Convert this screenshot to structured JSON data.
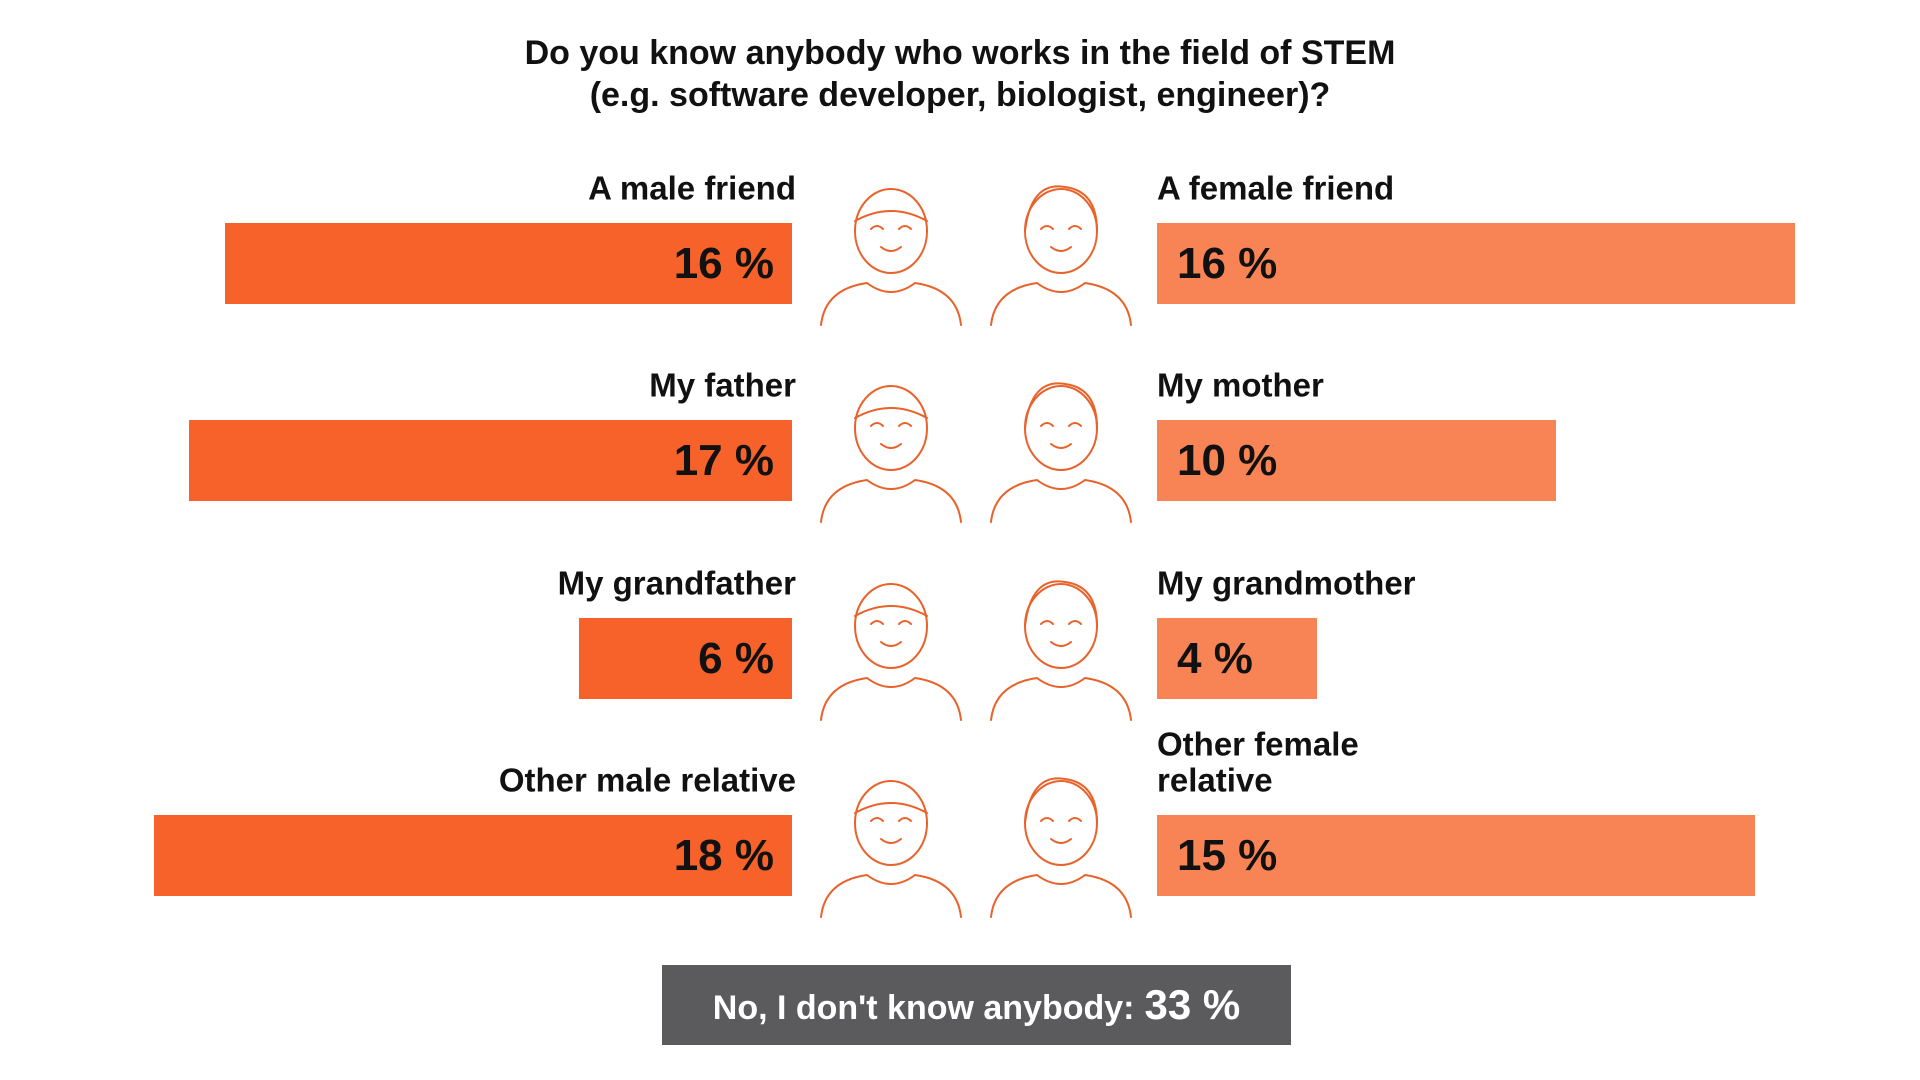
{
  "chart_data": {
    "type": "butterfly-bar",
    "title": "Do you know anybody who works in the field of STEM",
    "subtitle": "(e.g. software developer, biologist, engineer)?",
    "series": [
      {
        "categories": [
          "A male friend",
          "My father",
          "My grandfather",
          "Other male relative"
        ],
        "values": [
          16,
          17,
          6,
          18
        ],
        "value_labels": [
          "16 %",
          "17 %",
          "6 %",
          "18 %"
        ],
        "color": "#f7612a",
        "xlim": [
          0,
          18
        ]
      },
      {
        "categories": [
          "A female friend",
          "My mother",
          "My grandmother",
          "Other female relative"
        ],
        "values": [
          16,
          10,
          4,
          15
        ],
        "value_labels": [
          "16 %",
          "10 %",
          "4 %",
          "15 %"
        ],
        "color": "#f88455",
        "xlim": [
          0,
          16
        ]
      }
    ],
    "note": {
      "label": "No, I don't know anybody:",
      "value_label": "33 %"
    }
  }
}
